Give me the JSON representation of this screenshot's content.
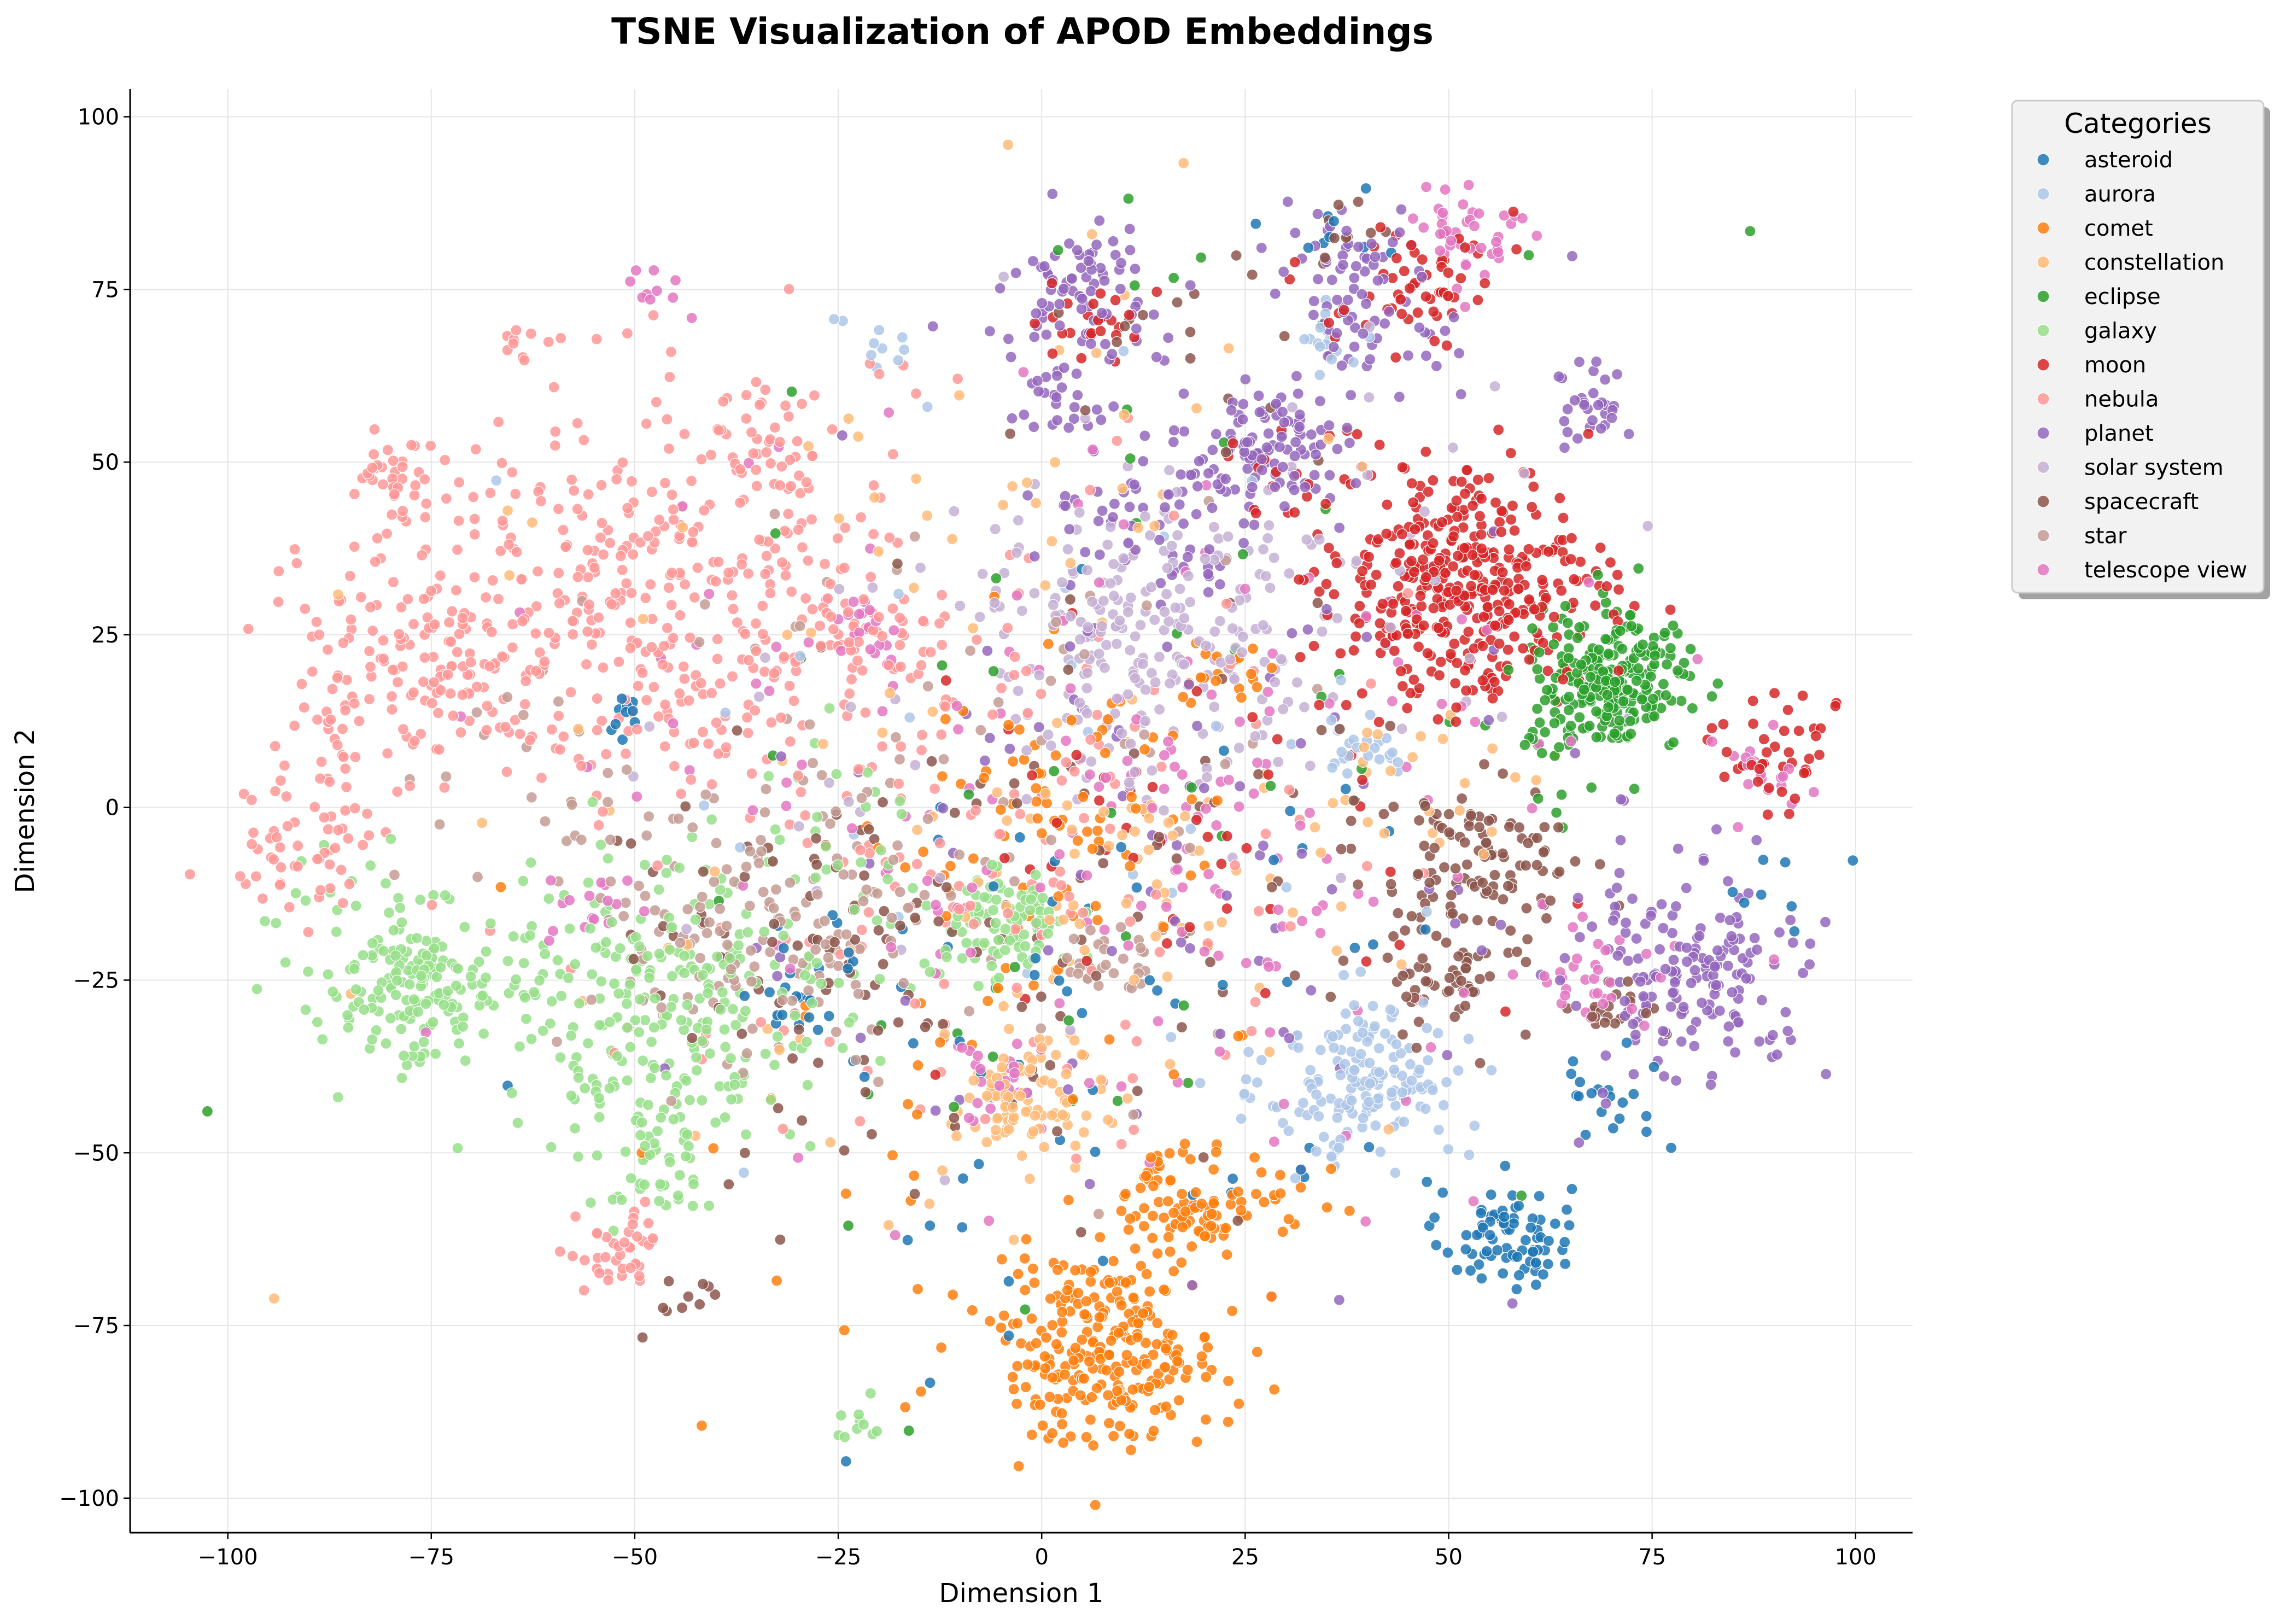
{
  "chart_data": {
    "type": "scatter",
    "title": "TSNE Visualization of APOD Embeddings",
    "xlabel": "Dimension 1",
    "ylabel": "Dimension 2",
    "xlim": [
      -112,
      107
    ],
    "ylim": [
      -105,
      104
    ],
    "xticks": [
      -100,
      -75,
      -50,
      -25,
      0,
      25,
      50,
      75,
      100
    ],
    "xtick_labels": [
      "−100",
      "−75",
      "−50",
      "−25",
      "0",
      "25",
      "50",
      "75",
      "100"
    ],
    "yticks": [
      -100,
      -75,
      -50,
      -25,
      0,
      25,
      50,
      75,
      100
    ],
    "ytick_labels": [
      "−100",
      "−75",
      "−50",
      "−25",
      "0",
      "25",
      "50",
      "75",
      "100"
    ],
    "grid": true,
    "legend_title": "Categories",
    "legend_position": "outside-top-right",
    "series": [
      {
        "name": "asteroid",
        "color": "#1f77b4",
        "clusters": [
          [
            57,
            -62,
            4,
            80
          ],
          [
            70,
            -42,
            4,
            20
          ],
          [
            -52,
            14,
            2,
            10
          ],
          [
            -30,
            -28,
            3,
            15
          ],
          [
            36,
            85,
            4,
            10
          ],
          [
            90,
            -10,
            3,
            8
          ],
          [
            5,
            -30,
            25,
            70
          ]
        ]
      },
      {
        "name": "aurora",
        "color": "#aec7e8",
        "clusters": [
          [
            40,
            -40,
            6,
            160
          ],
          [
            40,
            10,
            3,
            25
          ],
          [
            10,
            0,
            30,
            30
          ],
          [
            -20,
            65,
            3,
            10
          ],
          [
            35,
            68,
            3,
            15
          ]
        ]
      },
      {
        "name": "comet",
        "color": "#ff7f0e",
        "clusters": [
          [
            8,
            -78,
            7,
            260
          ],
          [
            18,
            -57,
            4,
            80
          ],
          [
            3,
            0,
            10,
            70
          ],
          [
            -15,
            -40,
            25,
            40
          ],
          [
            24,
            20,
            3,
            20
          ],
          [
            30,
            -58,
            3,
            15
          ]
        ]
      },
      {
        "name": "constellation",
        "color": "#ffbb78",
        "clusters": [
          [
            -3,
            -43,
            4,
            90
          ],
          [
            10,
            -10,
            10,
            50
          ],
          [
            -10,
            40,
            25,
            30
          ],
          [
            45,
            0,
            10,
            30
          ],
          [
            -20,
            -20,
            30,
            40
          ],
          [
            0,
            50,
            10,
            20
          ]
        ]
      },
      {
        "name": "eclipse",
        "color": "#2ca02c",
        "clusters": [
          [
            70,
            18,
            5,
            240
          ],
          [
            15,
            40,
            30,
            35
          ],
          [
            5,
            -40,
            20,
            15
          ],
          [
            60,
            10,
            5,
            15
          ]
        ]
      },
      {
        "name": "galaxy",
        "color": "#98df8a",
        "clusters": [
          [
            -77,
            -27,
            5,
            140
          ],
          [
            -48,
            -30,
            12,
            260
          ],
          [
            -5,
            -17,
            4,
            90
          ],
          [
            -47,
            -52,
            4,
            40
          ],
          [
            -23,
            -90,
            2,
            10
          ],
          [
            -85,
            -15,
            8,
            30
          ],
          [
            -25,
            -8,
            8,
            40
          ]
        ]
      },
      {
        "name": "moon",
        "color": "#d62728",
        "clusters": [
          [
            52,
            32,
            8,
            400
          ],
          [
            7,
            70,
            3,
            25
          ],
          [
            47,
            76,
            5,
            60
          ],
          [
            90,
            8,
            4,
            40
          ],
          [
            15,
            0,
            20,
            50
          ],
          [
            30,
            50,
            4,
            20
          ]
        ]
      },
      {
        "name": "nebula",
        "color": "#ff9896",
        "clusters": [
          [
            -50,
            30,
            15,
            380
          ],
          [
            -80,
            20,
            7,
            120
          ],
          [
            -78,
            48,
            3,
            40
          ],
          [
            -90,
            -5,
            5,
            60
          ],
          [
            -52,
            -65,
            3,
            40
          ],
          [
            -35,
            55,
            4,
            30
          ],
          [
            -22,
            25,
            3,
            30
          ],
          [
            -15,
            10,
            20,
            100
          ],
          [
            -62,
            68,
            2,
            10
          ],
          [
            -10,
            0,
            25,
            100
          ]
        ]
      },
      {
        "name": "planet",
        "color": "#9467bd",
        "clusters": [
          [
            5,
            75,
            5,
            80
          ],
          [
            29,
            53,
            4,
            90
          ],
          [
            40,
            75,
            6,
            80
          ],
          [
            80,
            -24,
            7,
            170
          ],
          [
            68,
            58,
            3,
            30
          ],
          [
            15,
            45,
            8,
            80
          ],
          [
            20,
            0,
            30,
            100
          ],
          [
            2,
            58,
            2,
            20
          ]
        ]
      },
      {
        "name": "solar system",
        "color": "#c5b0d5",
        "clusters": [
          [
            12,
            25,
            10,
            220
          ],
          [
            40,
            40,
            15,
            40
          ],
          [
            -10,
            5,
            20,
            30
          ]
        ]
      },
      {
        "name": "spacecraft",
        "color": "#8c564b",
        "clusters": [
          [
            54,
            -10,
            6,
            110
          ],
          [
            50,
            -25,
            3,
            40
          ],
          [
            -25,
            -20,
            15,
            90
          ],
          [
            20,
            -15,
            20,
            70
          ],
          [
            70,
            -30,
            3,
            20
          ],
          [
            38,
            83,
            3,
            10
          ],
          [
            -45,
            -72,
            3,
            10
          ],
          [
            20,
            70,
            10,
            20
          ]
        ]
      },
      {
        "name": "star",
        "color": "#c49c94",
        "clusters": [
          [
            -33,
            -17,
            10,
            140
          ],
          [
            9,
            -22,
            3,
            30
          ],
          [
            -15,
            0,
            25,
            60
          ],
          [
            -60,
            0,
            10,
            30
          ]
        ]
      },
      {
        "name": "telescope view",
        "color": "#e377c2",
        "clusters": [
          [
            52,
            84,
            3,
            40
          ],
          [
            -47,
            75,
            2,
            10
          ],
          [
            -22,
            25,
            3,
            20
          ],
          [
            -55,
            -14,
            3,
            15
          ],
          [
            20,
            -5,
            25,
            130
          ],
          [
            -10,
            5,
            30,
            60
          ],
          [
            68,
            -25,
            4,
            30
          ],
          [
            88,
            5,
            3,
            20
          ],
          [
            -5,
            -40,
            3,
            20
          ]
        ]
      }
    ]
  }
}
